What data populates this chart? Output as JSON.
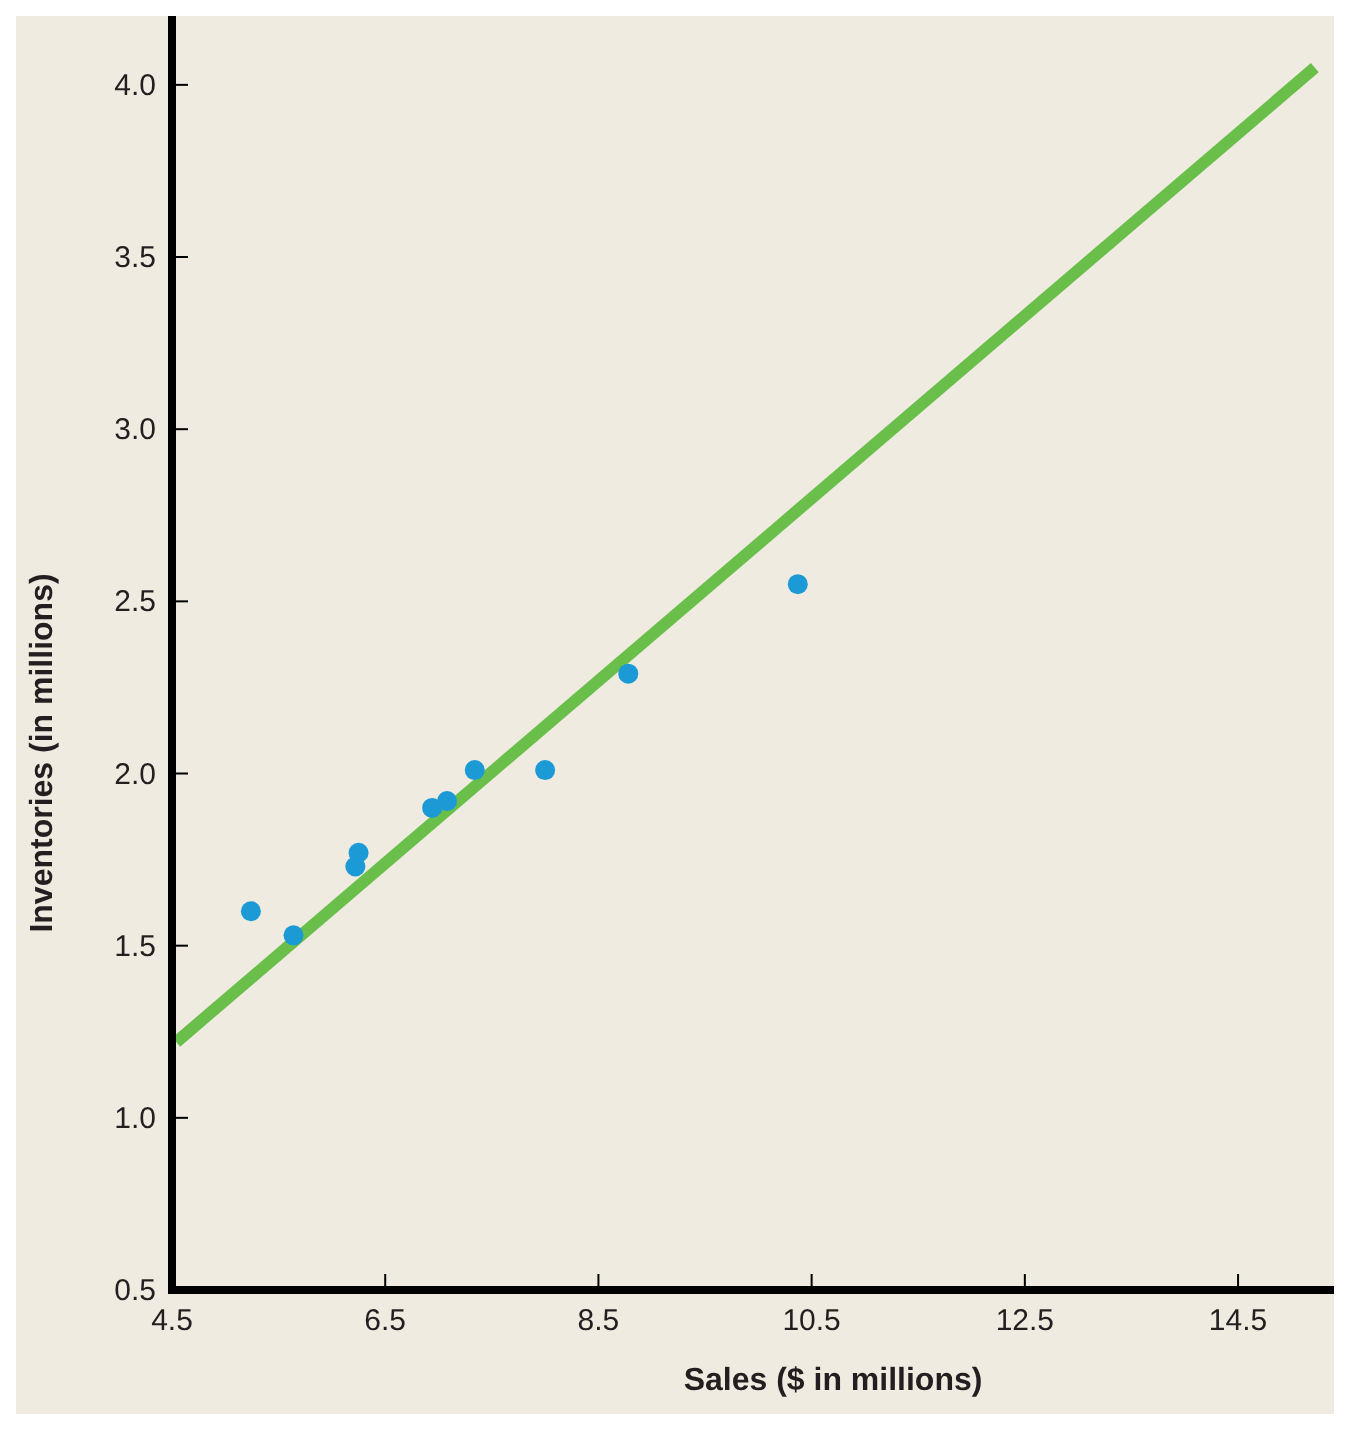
{
  "chart_data": {
    "type": "scatter",
    "xlabel": "Sales ($ in millions)",
    "ylabel": "Inventories (in millions)",
    "xlim": [
      4.5,
      15.4
    ],
    "ylim": [
      0.5,
      4.2
    ],
    "xticks": [
      4.5,
      6.5,
      8.5,
      10.5,
      12.5,
      14.5
    ],
    "yticks": [
      {
        "value": 0.5,
        "label": "0.5"
      },
      {
        "value": 1,
        "label": "1.0"
      },
      1.5,
      {
        "value": 2,
        "label": "2.0"
      },
      2.5,
      {
        "value": 3,
        "label": "3.0"
      },
      3.5,
      {
        "value": 4,
        "label": "4.0"
      }
    ],
    "grid": false,
    "series": [
      {
        "marker": "circle",
        "color": "#1b9ad6",
        "x": [
          5.24,
          5.64,
          6.22,
          6.25,
          6.94,
          7.08,
          7.34,
          8.0,
          8.78,
          10.37
        ],
        "values": [
          1.6,
          1.53,
          1.73,
          1.77,
          1.9,
          1.92,
          2.01,
          2.01,
          2.29,
          2.55
        ]
      },
      {
        "type": "line",
        "marker": "none",
        "color": "#6abf4b",
        "x": [
          4.54,
          15.22
        ],
        "values": [
          1.22,
          4.05
        ]
      }
    ]
  }
}
